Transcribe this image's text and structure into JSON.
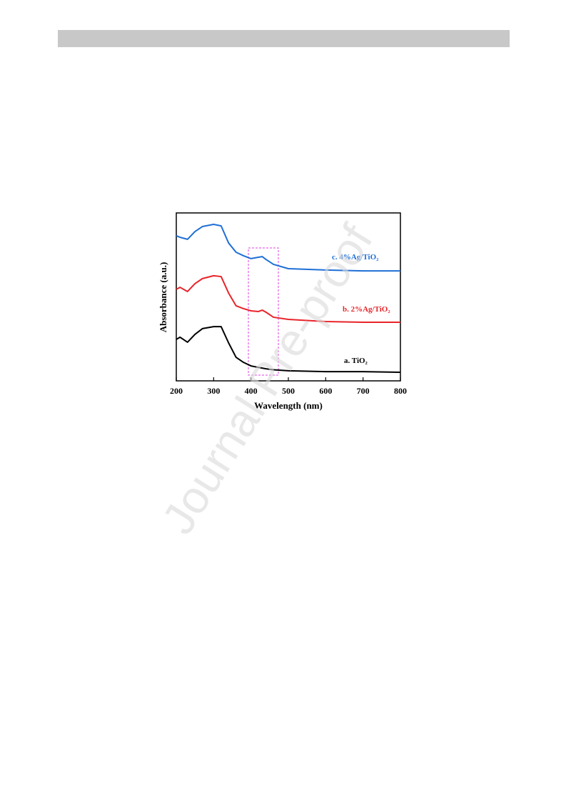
{
  "watermark": "Journal Pre-proof",
  "chart_data": {
    "type": "line",
    "xlabel": "Wavelength (nm)",
    "ylabel": "Absorbance (a.u.)",
    "x": [
      200,
      210,
      230,
      250,
      270,
      300,
      320,
      340,
      360,
      380,
      400,
      420,
      430,
      440,
      460,
      500,
      600,
      700,
      800
    ],
    "xlim": [
      200,
      800
    ],
    "xticks": [
      200,
      300,
      400,
      500,
      600,
      700,
      800
    ],
    "ylim": [
      0,
      1
    ],
    "series": [
      {
        "name": "a. TiO₂",
        "color": "#000000",
        "values": [
          0.247,
          0.26,
          0.23,
          0.277,
          0.311,
          0.323,
          0.323,
          0.226,
          0.14,
          0.11,
          0.089,
          0.08,
          0.076,
          0.072,
          0.066,
          0.06,
          0.055,
          0.055,
          0.051
        ]
      },
      {
        "name": "b. 2%Ag/TiO₂",
        "color": "#e8242a",
        "values": [
          0.545,
          0.557,
          0.532,
          0.579,
          0.609,
          0.626,
          0.621,
          0.523,
          0.447,
          0.43,
          0.417,
          0.413,
          0.421,
          0.409,
          0.379,
          0.366,
          0.353,
          0.349,
          0.349
        ]
      },
      {
        "name": "c. 4%Ag/TiO₂",
        "color": "#1f6fd6",
        "values": [
          0.864,
          0.855,
          0.843,
          0.889,
          0.919,
          0.932,
          0.923,
          0.821,
          0.766,
          0.745,
          0.728,
          0.736,
          0.74,
          0.723,
          0.694,
          0.668,
          0.66,
          0.655,
          0.655
        ]
      }
    ]
  }
}
